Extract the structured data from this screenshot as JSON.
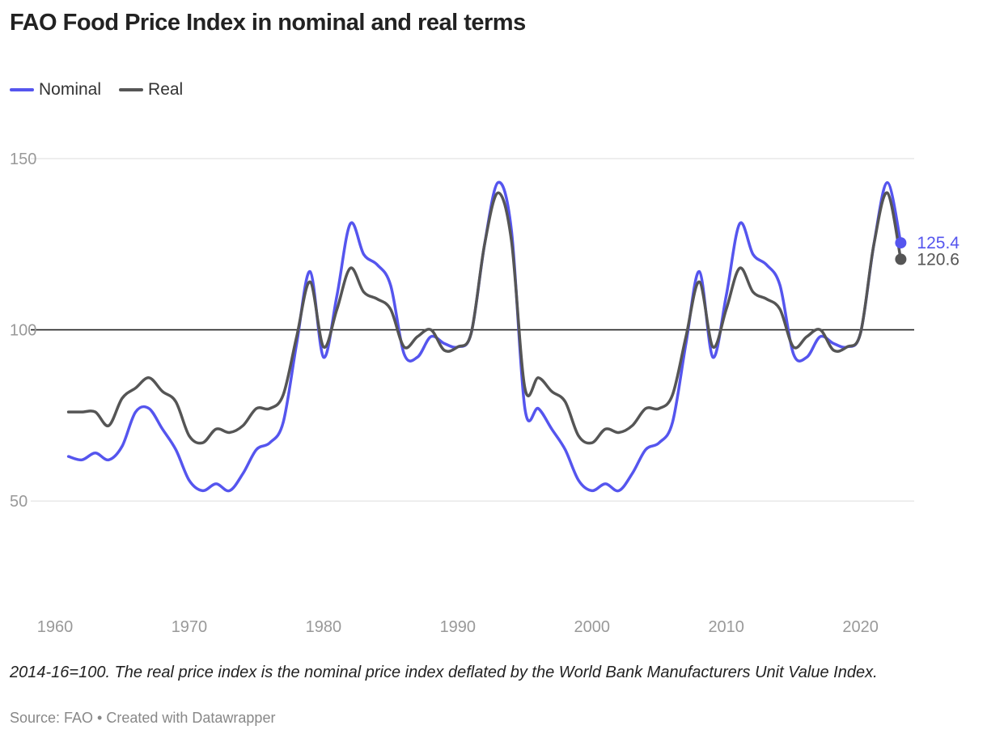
{
  "chart_data": {
    "type": "line",
    "title": "FAO Food Price Index in nominal and real terms",
    "xlabel": "",
    "ylabel": "",
    "xlim": [
      1960,
      2024
    ],
    "ylim": [
      20,
      150
    ],
    "y_ticks": [
      50,
      100,
      150
    ],
    "x_ticks": [
      1960,
      1970,
      1980,
      1990,
      2000,
      2010,
      2020
    ],
    "x_tick_labels": [
      "1960",
      "1970",
      "1980",
      "1990",
      "2000",
      "2010",
      "2020"
    ],
    "y_tick_labels": [
      "50",
      "100",
      "150"
    ],
    "reference_line": 100,
    "grid": true,
    "legend_position": "top-left",
    "series": [
      {
        "name": "Nominal",
        "color": "#5555ee",
        "end_label": "125.4",
        "points": [
          [
            1961,
            63
          ],
          [
            1962,
            62
          ],
          [
            1963,
            64
          ],
          [
            1964,
            62
          ],
          [
            1965,
            66
          ],
          [
            1966,
            76
          ],
          [
            1967,
            77
          ],
          [
            1968,
            71
          ],
          [
            1969,
            65
          ],
          [
            1970,
            56
          ],
          [
            1971,
            53
          ],
          [
            1972,
            55
          ],
          [
            1973,
            53
          ],
          [
            1974,
            58
          ],
          [
            1975,
            65
          ],
          [
            1976,
            67
          ],
          [
            1977,
            73
          ],
          [
            1978,
            96
          ],
          [
            1979,
            117
          ],
          [
            1980,
            92
          ],
          [
            1981,
            110
          ],
          [
            1982,
            131
          ],
          [
            1983,
            122
          ],
          [
            1984,
            119
          ],
          [
            1985,
            113
          ],
          [
            1986,
            93
          ],
          [
            1987,
            92
          ],
          [
            1988,
            98
          ],
          [
            1989,
            96
          ],
          [
            1990,
            95
          ],
          [
            1991,
            99
          ],
          [
            1992,
            125
          ],
          [
            1993,
            143
          ],
          [
            1994,
            129
          ],
          [
            1995,
            77
          ],
          [
            1996,
            77
          ],
          [
            1997,
            71
          ],
          [
            1998,
            65
          ],
          [
            1999,
            56
          ],
          [
            2000,
            53
          ],
          [
            2001,
            55
          ],
          [
            2002,
            53
          ],
          [
            2003,
            58
          ],
          [
            2004,
            65
          ],
          [
            2005,
            67
          ],
          [
            2006,
            73
          ],
          [
            2007,
            96
          ],
          [
            2008,
            117
          ],
          [
            2009,
            92
          ],
          [
            2010,
            110
          ],
          [
            2011,
            131
          ],
          [
            2012,
            122
          ],
          [
            2013,
            119
          ],
          [
            2014,
            113
          ],
          [
            2015,
            93
          ],
          [
            2016,
            92
          ],
          [
            2017,
            98
          ],
          [
            2018,
            96
          ],
          [
            2019,
            95
          ],
          [
            2020,
            99
          ],
          [
            2021,
            125
          ],
          [
            2022,
            143
          ],
          [
            2023,
            125.4
          ]
        ]
      },
      {
        "name": "Real",
        "color": "#555555",
        "end_label": "120.6",
        "points": [
          [
            1961,
            76
          ],
          [
            1962,
            76
          ],
          [
            1963,
            76
          ],
          [
            1964,
            72
          ],
          [
            1965,
            80
          ],
          [
            1966,
            83
          ],
          [
            1967,
            86
          ],
          [
            1968,
            82
          ],
          [
            1969,
            79
          ],
          [
            1970,
            69
          ],
          [
            1971,
            67
          ],
          [
            1972,
            71
          ],
          [
            1973,
            70
          ],
          [
            1974,
            72
          ],
          [
            1975,
            77
          ],
          [
            1976,
            77
          ],
          [
            1977,
            81
          ],
          [
            1978,
            98
          ],
          [
            1979,
            114
          ],
          [
            1980,
            95
          ],
          [
            1981,
            106
          ],
          [
            1982,
            118
          ],
          [
            1983,
            111
          ],
          [
            1984,
            109
          ],
          [
            1985,
            106
          ],
          [
            1986,
            95
          ],
          [
            1987,
            98
          ],
          [
            1988,
            100
          ],
          [
            1989,
            94
          ],
          [
            1990,
            95
          ],
          [
            1991,
            99
          ],
          [
            1992,
            125
          ],
          [
            1993,
            140
          ],
          [
            1994,
            126
          ],
          [
            1995,
            83
          ],
          [
            1996,
            86
          ],
          [
            1997,
            82
          ],
          [
            1998,
            79
          ],
          [
            1999,
            69
          ],
          [
            2000,
            67
          ],
          [
            2001,
            71
          ],
          [
            2002,
            70
          ],
          [
            2003,
            72
          ],
          [
            2004,
            77
          ],
          [
            2005,
            77
          ],
          [
            2006,
            81
          ],
          [
            2007,
            98
          ],
          [
            2008,
            114
          ],
          [
            2009,
            95
          ],
          [
            2010,
            106
          ],
          [
            2011,
            118
          ],
          [
            2012,
            111
          ],
          [
            2013,
            109
          ],
          [
            2014,
            106
          ],
          [
            2015,
            95
          ],
          [
            2016,
            98
          ],
          [
            2017,
            100
          ],
          [
            2018,
            94
          ],
          [
            2019,
            95
          ],
          [
            2020,
            99
          ],
          [
            2021,
            125
          ],
          [
            2022,
            140
          ],
          [
            2023,
            120.6
          ]
        ]
      }
    ]
  },
  "note": "2014-16=100. The real price index is the nominal price index deflated by the World Bank Manufacturers Unit Value Index.",
  "source": "Source: FAO • Created with Datawrapper"
}
